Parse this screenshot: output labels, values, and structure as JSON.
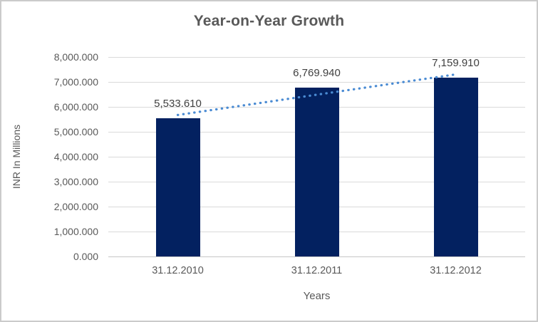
{
  "chart_data": {
    "type": "bar",
    "title": "Year-on-Year Growth",
    "xlabel": "Years",
    "ylabel": "INR In Millions",
    "categories": [
      "31.12.2010",
      "31.12.2011",
      "31.12.2012"
    ],
    "values": [
      5533.61,
      6769.94,
      7159.91
    ],
    "data_labels": [
      "5,533.610",
      "6,769.940",
      "7,159.910"
    ],
    "ylim": [
      0,
      8000
    ],
    "y_ticks": [
      {
        "value": 0,
        "label": "0.000"
      },
      {
        "value": 1000,
        "label": "1,000.000"
      },
      {
        "value": 2000,
        "label": "2,000.000"
      },
      {
        "value": 3000,
        "label": "3,000.000"
      },
      {
        "value": 4000,
        "label": "4,000.000"
      },
      {
        "value": 5000,
        "label": "5,000.000"
      },
      {
        "value": 6000,
        "label": "6,000.000"
      },
      {
        "value": 7000,
        "label": "7,000.000"
      },
      {
        "value": 8000,
        "label": "8,000.000"
      }
    ],
    "grid": true,
    "legend": "none",
    "trendline": {
      "type": "linear",
      "style": "dotted"
    },
    "colors": {
      "bar": "#032160",
      "trend": "#4A8BD3",
      "grid": "#DADADA",
      "axis_line": "#C6C6C6",
      "text": "#595959",
      "data_label": "#404040",
      "border": "#CBCBCB",
      "background": "#FFFFFF"
    }
  }
}
